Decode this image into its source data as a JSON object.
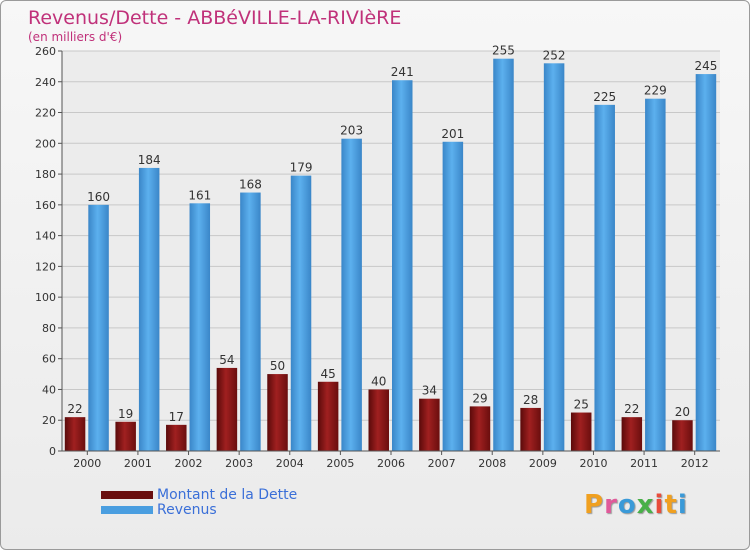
{
  "title": "Revenus/Dette - ABBéVILLE-LA-RIVIèRE",
  "subtitle": "(en milliers d'€)",
  "logo": "Proxiti",
  "colors": {
    "debt": "#7a1010",
    "revenue": "#4a9ee0",
    "title": "#c0317a",
    "legend_text": "#3a6fd8"
  },
  "chart_data": {
    "type": "bar",
    "categories": [
      "2000",
      "2001",
      "2002",
      "2003",
      "2004",
      "2005",
      "2006",
      "2007",
      "2008",
      "2009",
      "2010",
      "2011",
      "2012"
    ],
    "series": [
      {
        "name": "Montant de la Dette",
        "values": [
          22,
          19,
          17,
          54,
          50,
          45,
          40,
          34,
          29,
          28,
          25,
          22,
          20
        ]
      },
      {
        "name": "Revenus",
        "values": [
          160,
          184,
          161,
          168,
          179,
          203,
          241,
          201,
          255,
          252,
          225,
          229,
          245
        ]
      }
    ],
    "ylim": [
      0,
      260
    ],
    "yticks": [
      0,
      20,
      40,
      60,
      80,
      100,
      120,
      140,
      160,
      180,
      200,
      220,
      240,
      260
    ],
    "grid": true,
    "legend_position": "bottom-left"
  }
}
